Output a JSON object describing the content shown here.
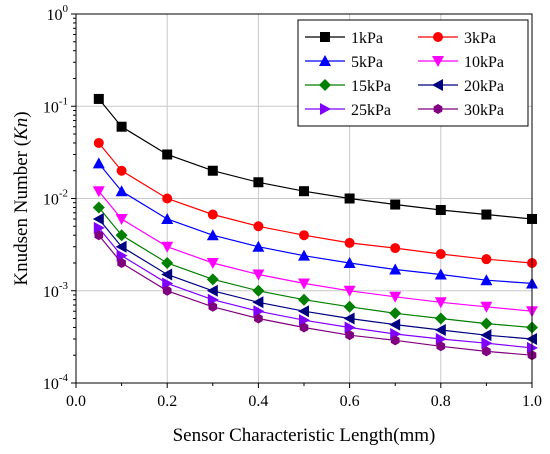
{
  "chart_data": {
    "type": "line",
    "xlabel": "Sensor Characteristic Length(mm)",
    "ylabel": "Knudsen Number (Kn)",
    "ylabel_parts": [
      "Knudsen Number (",
      "Kn",
      ")"
    ],
    "x_scale": "linear",
    "y_scale": "log",
    "xlim": [
      0.0,
      1.0
    ],
    "ylim": [
      0.0001,
      1
    ],
    "grid": true,
    "legend_position": "top-right",
    "x_ticks": [
      {
        "value": 0.0,
        "label": "0.0"
      },
      {
        "value": 0.2,
        "label": "0.2"
      },
      {
        "value": 0.4,
        "label": "0.4"
      },
      {
        "value": 0.6,
        "label": "0.6"
      },
      {
        "value": 0.8,
        "label": "0.8"
      },
      {
        "value": 1.0,
        "label": "1.0"
      }
    ],
    "y_ticks": [
      {
        "value": 0.0001,
        "base": "10",
        "exp": "-4"
      },
      {
        "value": 0.001,
        "base": "10",
        "exp": "-3"
      },
      {
        "value": 0.01,
        "base": "10",
        "exp": "-2"
      },
      {
        "value": 0.1,
        "base": "10",
        "exp": "-1"
      },
      {
        "value": 1,
        "base": "10",
        "exp": "0"
      }
    ],
    "x": [
      0.05,
      0.1,
      0.2,
      0.3,
      0.4,
      0.5,
      0.6,
      0.7,
      0.8,
      0.9,
      1.0
    ],
    "series": [
      {
        "name": "1kPa",
        "color": "#000000",
        "marker": "square",
        "values": [
          0.12,
          0.06,
          0.03,
          0.02,
          0.015,
          0.012,
          0.01,
          0.0086,
          0.0075,
          0.0067,
          0.006
        ]
      },
      {
        "name": "3kPa",
        "color": "#ff0000",
        "marker": "circle",
        "values": [
          0.04,
          0.02,
          0.01,
          0.0067,
          0.005,
          0.004,
          0.0033,
          0.0029,
          0.0025,
          0.0022,
          0.002
        ]
      },
      {
        "name": "5kPa",
        "color": "#0000ff",
        "marker": "triangle-up",
        "values": [
          0.024,
          0.012,
          0.006,
          0.004,
          0.003,
          0.0024,
          0.002,
          0.0017,
          0.0015,
          0.0013,
          0.0012
        ]
      },
      {
        "name": "10kPa",
        "color": "#ff00ff",
        "marker": "triangle-down",
        "values": [
          0.012,
          0.006,
          0.003,
          0.002,
          0.0015,
          0.0012,
          0.001,
          0.00086,
          0.00075,
          0.00067,
          0.0006
        ]
      },
      {
        "name": "15kPa",
        "color": "#008000",
        "marker": "diamond",
        "values": [
          0.008,
          0.004,
          0.002,
          0.00133,
          0.001,
          0.0008,
          0.00067,
          0.00057,
          0.0005,
          0.00044,
          0.0004
        ]
      },
      {
        "name": "20kPa",
        "color": "#000080",
        "marker": "triangle-left",
        "values": [
          0.006,
          0.003,
          0.0015,
          0.001,
          0.00075,
          0.0006,
          0.0005,
          0.00043,
          0.000375,
          0.00033,
          0.0003
        ]
      },
      {
        "name": "25kPa",
        "color": "#8000ff",
        "marker": "triangle-right",
        "values": [
          0.0048,
          0.0024,
          0.0012,
          0.0008,
          0.0006,
          0.00048,
          0.0004,
          0.00034,
          0.0003,
          0.00027,
          0.00024
        ]
      },
      {
        "name": "30kPa",
        "color": "#800080",
        "marker": "hexagon",
        "values": [
          0.004,
          0.002,
          0.001,
          0.00067,
          0.0005,
          0.0004,
          0.00033,
          0.00029,
          0.00025,
          0.00022,
          0.0002
        ]
      }
    ]
  }
}
